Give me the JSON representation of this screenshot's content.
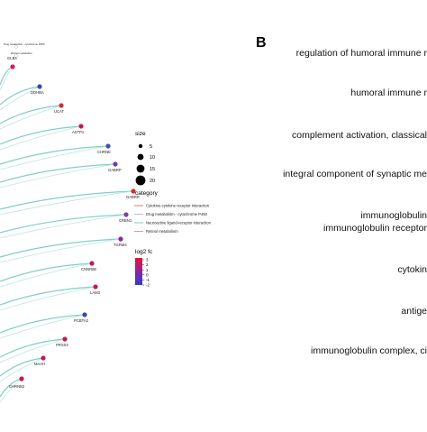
{
  "panel_b_label": "B",
  "cnet": {
    "gene_nodes": [
      {
        "label": "Drug metabolism - cytochrome P450",
        "color": "#ffffff",
        "rim": "#bbbbbb"
      },
      {
        "label": "Retinol metabolism",
        "color": "#ffffff",
        "rim": "#bbbbbb"
      },
      {
        "label": "GLB4",
        "color": "#d81b60"
      },
      {
        "label": "DDHBA",
        "color": "#3949ab"
      },
      {
        "label": "UCAT",
        "color": "#d32f2f"
      },
      {
        "label": "ASTP1",
        "color": "#c2185b"
      },
      {
        "label": "CHRNE",
        "color": "#3f51b5"
      },
      {
        "label": "GABRP",
        "color": "#6a3fb3"
      },
      {
        "label": "GABRR",
        "color": "#d32f2f"
      },
      {
        "label": "CRBN1",
        "color": "#7b3fb0"
      },
      {
        "label": "TGRM4",
        "color": "#8e24aa"
      },
      {
        "label": "CNNR6E",
        "color": "#c2185b"
      },
      {
        "label": "LAM3",
        "color": "#c2185b"
      },
      {
        "label": "PCBTA2",
        "color": "#3949ab"
      },
      {
        "label": "PRSS3",
        "color": "#c2185b"
      },
      {
        "label": "MAAH",
        "color": "#c2185b"
      },
      {
        "label": "CHRNB2",
        "color": "#c2185b"
      }
    ],
    "legend": {
      "size_title": "size",
      "size_values": [
        "5",
        "10",
        "15",
        "20"
      ],
      "category_title": "category",
      "categories": [
        {
          "label": "Cytokine-cytokine receptor interaction",
          "color": "#e57373"
        },
        {
          "label": "Drug metabolism - cytochrome P450",
          "color": "#bdbdbd"
        },
        {
          "label": "Neuroactive ligand-receptor interaction",
          "color": "#80cbc4"
        },
        {
          "label": "Retinol metabolism",
          "color": "#ce93d8"
        }
      ],
      "fc_title": "log2 fc",
      "fc_ticks": [
        "3",
        "2",
        "1",
        "0",
        "-1",
        "-2"
      ],
      "fc_gradient": [
        "#e8112d",
        "#a0228c",
        "#5a33b8",
        "#2f3fc4"
      ]
    }
  },
  "go_terms": [
    "regulation of humoral immune r",
    "humoral immune r",
    "complement activation, classical",
    "integral component of synaptic me",
    "immunoglobulin",
    "immunoglobulin receptor",
    "cytokin",
    "antige",
    "immunoglobulin complex, ci"
  ]
}
